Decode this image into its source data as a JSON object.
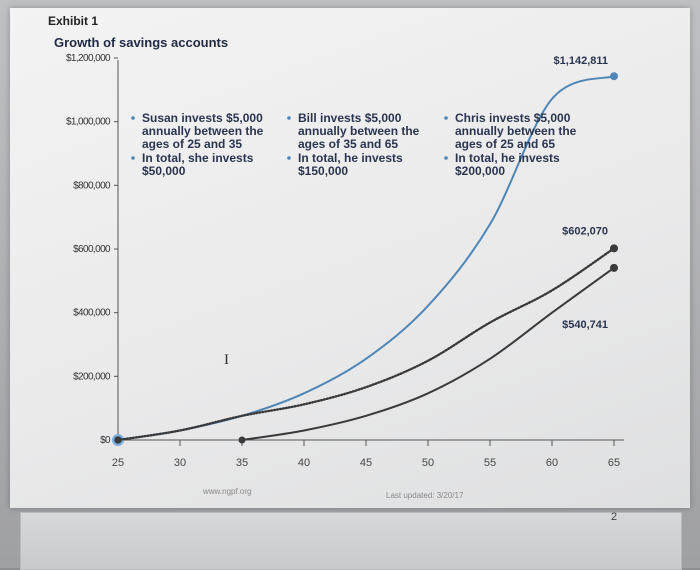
{
  "header": {
    "exhibit": "Exhibit 1"
  },
  "chart_data": {
    "type": "line",
    "title": "Growth of savings accounts",
    "xlabel": "",
    "ylabel": "",
    "xlim": [
      25,
      65
    ],
    "ylim": [
      0,
      1200000
    ],
    "x_ticks": [
      25,
      30,
      35,
      40,
      45,
      50,
      55,
      60,
      65
    ],
    "y_ticks": [
      {
        "value": 0,
        "label": "$0"
      },
      {
        "value": 200000,
        "label": "$200,000"
      },
      {
        "value": 400000,
        "label": "$400,000"
      },
      {
        "value": 600000,
        "label": "$600,000"
      },
      {
        "value": 800000,
        "label": "$800,000"
      },
      {
        "value": 1000000,
        "label": "$1,000,000"
      },
      {
        "value": 1200000,
        "label": "$1,200,000"
      }
    ],
    "grid": false,
    "series": [
      {
        "name": "Chris",
        "color": "#4f86b6",
        "style": "solid",
        "x": [
          25,
          30,
          35,
          40,
          45,
          50,
          55,
          60,
          65
        ],
        "values": [
          0,
          29877,
          75858,
          146600,
          255000,
          421500,
          677600,
          1071500,
          1142811
        ]
      },
      {
        "name": "Susan",
        "color": "#3a3a3a",
        "style": "dotted",
        "x": [
          25,
          30,
          35,
          40,
          45,
          50,
          55,
          60,
          65
        ],
        "values": [
          0,
          29877,
          75858,
          112000,
          166000,
          249000,
          369000,
          470000,
          602070
        ]
      },
      {
        "name": "Bill",
        "color": "#3a3a3a",
        "style": "solid",
        "x": [
          35,
          40,
          45,
          50,
          55,
          60,
          65
        ],
        "values": [
          0,
          29877,
          75858,
          146600,
          255000,
          400000,
          540741
        ]
      }
    ],
    "end_labels": [
      {
        "series": "Chris",
        "label": "$1,142,811"
      },
      {
        "series": "Susan",
        "label": "$602,070"
      },
      {
        "series": "Bill",
        "label": "$540,741"
      }
    ],
    "annotations": [
      {
        "bullets": [
          {
            "lines": [
              "Susan invests $5,000",
              "annually between the",
              "ages of 25 and 35"
            ]
          },
          {
            "lines": [
              "In total, she invests",
              "$50,000"
            ]
          }
        ]
      },
      {
        "bullets": [
          {
            "lines": [
              "Bill invests $5,000",
              "annually between the",
              "ages of 35 and 65"
            ]
          },
          {
            "lines": [
              "In total, he invests",
              "$150,000"
            ]
          }
        ]
      },
      {
        "bullets": [
          {
            "lines": [
              "Chris invests $5,000",
              "annually between the",
              "ages of 25 and 65"
            ]
          },
          {
            "lines": [
              "In total, he invests",
              "$200,000"
            ]
          }
        ]
      }
    ],
    "source": "www.ngpf.org",
    "updated": "Last updated: 3/20/17",
    "page_number": "2",
    "cursor_glyph": "I"
  }
}
